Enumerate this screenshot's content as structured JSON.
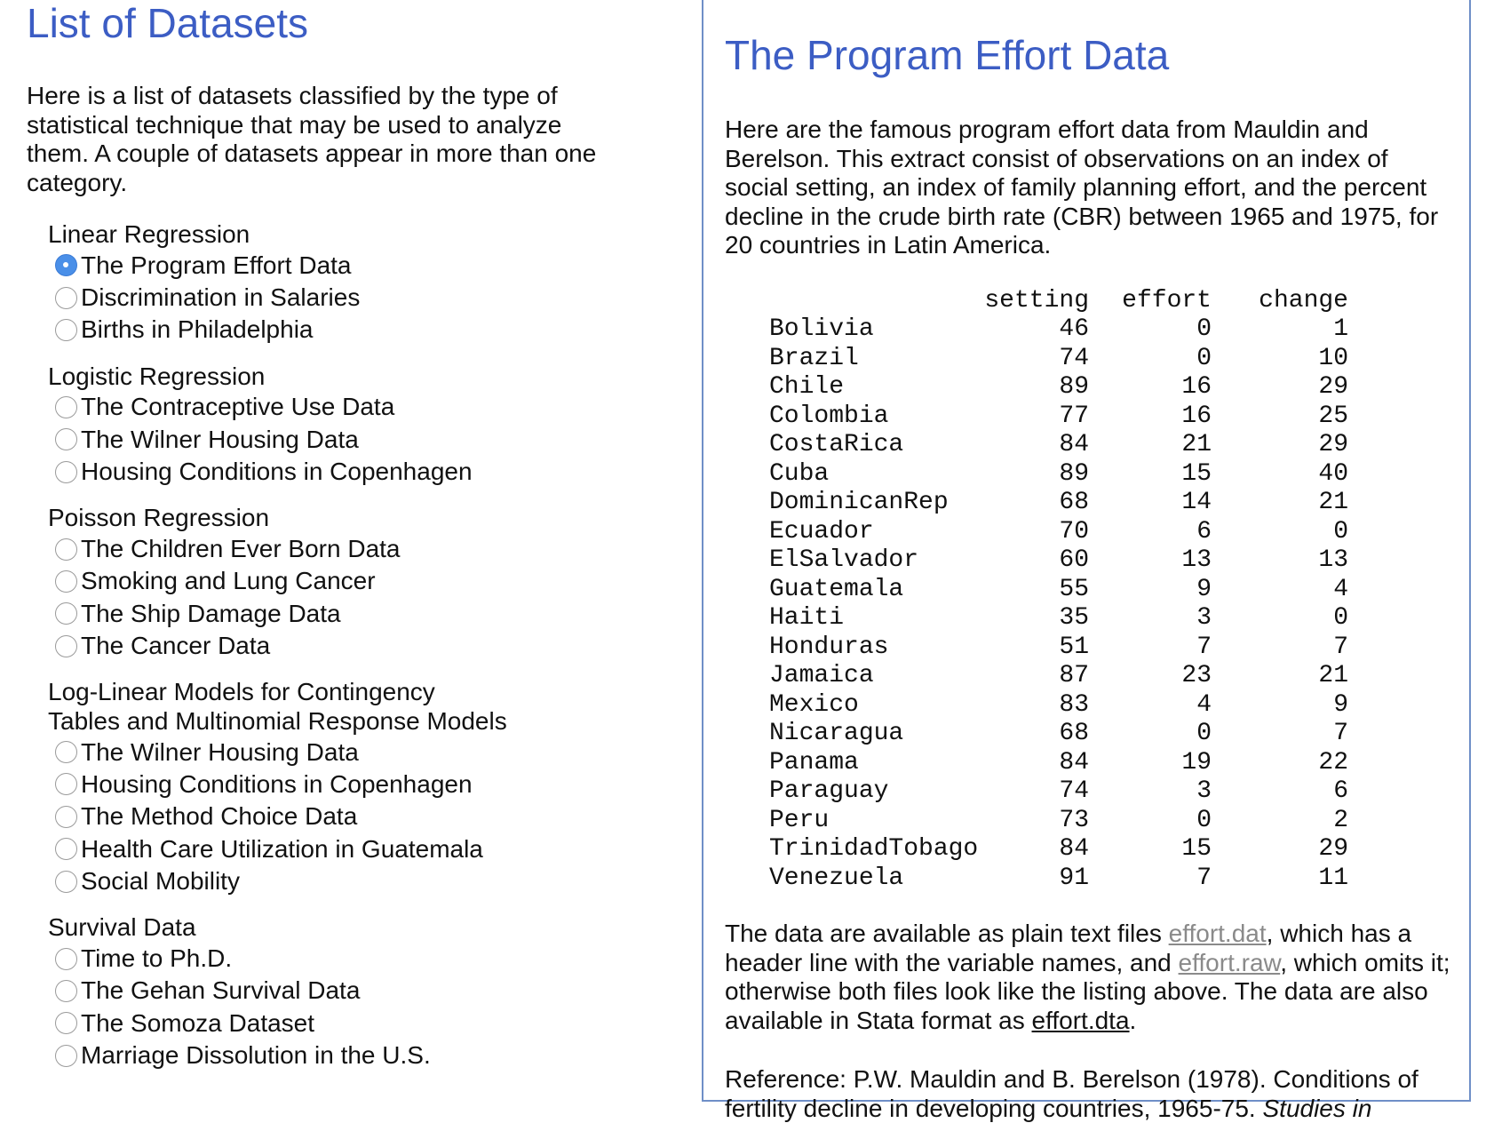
{
  "left": {
    "title": "List of Datasets",
    "intro": "Here is a list of datasets classified by the type of statistical technique that may be used to analyze them. A couple of datasets appear in more than one category.",
    "groups": [
      {
        "title": "Linear Regression",
        "items": [
          "The Program Effort Data",
          "Discrimination in Salaries",
          "Births in Philadelphia"
        ]
      },
      {
        "title": "Logistic Regression",
        "items": [
          "The Contraceptive Use Data",
          "The Wilner Housing Data",
          "Housing Conditions in Copenhagen"
        ]
      },
      {
        "title": "Poisson Regression",
        "items": [
          "The Children Ever Born Data",
          "Smoking and Lung Cancer",
          "The Ship Damage Data",
          "The Cancer Data"
        ]
      },
      {
        "title": "Log-Linear Models for Contingency Tables and Multinomial Response Models",
        "items": [
          "The Wilner Housing Data",
          "Housing Conditions in Copenhagen",
          "The Method Choice Data",
          "Health Care Utilization in Guatemala",
          "Social Mobility"
        ]
      },
      {
        "title": "Survival Data",
        "items": [
          "Time to Ph.D.",
          "The Gehan Survival Data",
          "The Somoza Dataset",
          "Marriage Dissolution in the U.S."
        ]
      }
    ],
    "selected": "The Program Effort Data"
  },
  "panel": {
    "title": "The Program Effort Data",
    "description": "Here are the famous program effort data from Mauldin and Berelson. This extract consist of observations on an index of social setting, an index of family planning effort, and the percent decline in the crude birth rate (CBR) between 1965 and 1975, for 20 countries in Latin America.",
    "table": {
      "columns": [
        "setting",
        "effort",
        "change"
      ],
      "rows": [
        [
          "Bolivia",
          "46",
          "0",
          "1"
        ],
        [
          "Brazil",
          "74",
          "0",
          "10"
        ],
        [
          "Chile",
          "89",
          "16",
          "29"
        ],
        [
          "Colombia",
          "77",
          "16",
          "25"
        ],
        [
          "CostaRica",
          "84",
          "21",
          "29"
        ],
        [
          "Cuba",
          "89",
          "15",
          "40"
        ],
        [
          "DominicanRep",
          "68",
          "14",
          "21"
        ],
        [
          "Ecuador",
          "70",
          "6",
          "0"
        ],
        [
          "ElSalvador",
          "60",
          "13",
          "13"
        ],
        [
          "Guatemala",
          "55",
          "9",
          "4"
        ],
        [
          "Haiti",
          "35",
          "3",
          "0"
        ],
        [
          "Honduras",
          "51",
          "7",
          "7"
        ],
        [
          "Jamaica",
          "87",
          "23",
          "21"
        ],
        [
          "Mexico",
          "83",
          "4",
          "9"
        ],
        [
          "Nicaragua",
          "68",
          "0",
          "7"
        ],
        [
          "Panama",
          "84",
          "19",
          "22"
        ],
        [
          "Paraguay",
          "74",
          "3",
          "6"
        ],
        [
          "Peru",
          "73",
          "0",
          "2"
        ],
        [
          "TrinidadTobago",
          "84",
          "15",
          "29"
        ],
        [
          "Venezuela",
          "91",
          "7",
          "11"
        ]
      ]
    },
    "availability": {
      "t1": "The data are available as plain text files ",
      "link1": "effort.dat",
      "t2": ", which has a header line with the variable names, and ",
      "link2": "effort.raw",
      "t3": ", which omits it; otherwise both files look like the listing above. The data are also available in Stata format as ",
      "link3": "effort.dta",
      "t4": "."
    },
    "reference": {
      "text": "Reference: P.W. Mauldin and B. Berelson (1978). Conditions of fertility decline in developing countries, 1965-75. ",
      "italic": "Studies in"
    }
  }
}
